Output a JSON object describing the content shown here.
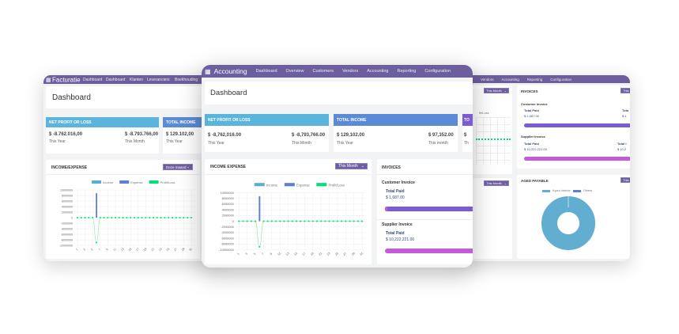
{
  "colors": {
    "header": "#6d5e9e",
    "net_profit": "#5ab4dc",
    "total_income": "#5b8bd6",
    "third_card": "#7b5bd6",
    "income": "#5aaed0",
    "expense": "#5b7fd6",
    "profit_loss": "#00e07a",
    "invoice_bar_customer": "#7a5cd8",
    "invoice_bar_supplier": "#c45ad8",
    "donut": "#62aed0"
  },
  "left": {
    "app_title": "Facturatie",
    "nav": [
      "Dashboard",
      "Dashboard",
      "Klanten",
      "Leveranciers",
      "Boekhouding"
    ],
    "page_title": "Dashboard",
    "net_profit": {
      "title": "NET PROFIT OR LOSS",
      "year_value": "$ -8.762.016,00",
      "year_label": "This Year",
      "month_value": "$ -8.793.766,00",
      "month_label": "This Month"
    },
    "total_income": {
      "title": "TOTAL INCOME",
      "year_value": "$ 129.102,00",
      "year_label": "This Year"
    },
    "income_expense": {
      "title": "INCOME/EXPENSE",
      "period": "Deze maand"
    }
  },
  "center": {
    "app_title": "Accounting",
    "nav": [
      "Dashboard",
      "Overview",
      "Customers",
      "Vendors",
      "Accounting",
      "Reporting",
      "Configuration"
    ],
    "page_title": "Dashboard",
    "net_profit": {
      "title": "NET PROFIT OR LOSS",
      "year_value": "$ -8,762,016.00",
      "year_label": "This Year",
      "month_value": "$ -8,793,766.00",
      "month_label": "This Month"
    },
    "total_income": {
      "title": "TOTAL INCOME",
      "year_value": "$ 129,102.00",
      "year_label": "This Year",
      "month_value": "$ 97,352.00",
      "month_label": "This month"
    },
    "third_card": {
      "title": "TO",
      "value": "$",
      "label": "Th"
    },
    "income_expense": {
      "title": "INCOME EXPENSE",
      "period": "This Month"
    },
    "invoices": {
      "title": "INVOICES",
      "customer_title": "Customer Invoice",
      "customer_paid_label": "Total Paid",
      "customer_paid_value": "$ 1,687.00",
      "supplier_title": "Supplier Invoice",
      "supplier_paid_label": "Total Paid",
      "supplier_paid_value": "$ 10,222,221.00"
    }
  },
  "right": {
    "nav": [
      "Vendors",
      "Accounting",
      "Reporting",
      "Configuration"
    ],
    "period_1": "This Month",
    "period_2": "This Month",
    "legend_fragment": "fit/Loss",
    "invoices": {
      "title": "INVOICES",
      "period": "This",
      "customer_title": "Customer Invoice",
      "customer_paid_label": "Total Paid",
      "customer_paid_value": "$ 1,687.00",
      "customer_col2_label": "Tota",
      "customer_col2_value": "$ 1",
      "supplier_title": "Supplier Invoice",
      "supplier_paid_label": "Total Paid",
      "supplier_paid_value": "$ 10,222,221.00",
      "supplier_col2_label": "Total I",
      "supplier_col2_value": "$ 10,2"
    },
    "aged_payable": {
      "title": "AGED PAYABLE",
      "period": "This",
      "legend": [
        "Kyaro Interior",
        "Others"
      ],
      "values": [
        100,
        0
      ]
    }
  },
  "chart_data": {
    "type": "bar",
    "title": "",
    "legend": [
      "Income",
      "Expense",
      "Profit/Loss"
    ],
    "legend_placement": "top",
    "x": [
      1,
      2,
      3,
      4,
      5,
      6,
      7,
      8,
      9,
      10,
      11,
      12,
      13,
      14,
      15,
      16,
      17,
      18,
      19,
      20,
      21,
      22,
      23,
      24,
      25,
      26,
      27,
      28,
      29,
      30,
      31
    ],
    "x_tick_labels": [
      "1",
      "3",
      "5",
      "7",
      "9",
      "11",
      "13",
      "15",
      "17",
      "19",
      "21",
      "23",
      "25",
      "27",
      "29",
      "31"
    ],
    "y_tick_labels": [
      "10000000",
      "8000000",
      "6000000",
      "4000000",
      "2000000",
      "0",
      "-2000000",
      "-4000000",
      "-6000000",
      "-8000000",
      "-10000000"
    ],
    "ylim": [
      -10000000,
      10000000
    ],
    "grid": true,
    "series": [
      {
        "name": "Income",
        "type": "bar",
        "values": [
          0,
          0,
          0,
          0,
          0,
          0,
          0,
          0,
          0,
          0,
          0,
          0,
          0,
          0,
          0,
          0,
          0,
          0,
          0,
          0,
          0,
          0,
          0,
          0,
          0,
          0,
          0,
          0,
          0,
          0,
          0
        ]
      },
      {
        "name": "Expense",
        "type": "bar",
        "values": [
          0,
          0,
          0,
          0,
          0,
          8800000,
          0,
          0,
          0,
          0,
          0,
          0,
          0,
          0,
          0,
          0,
          0,
          0,
          0,
          0,
          0,
          0,
          0,
          0,
          0,
          0,
          0,
          0,
          0,
          0,
          0
        ]
      },
      {
        "name": "Profit/Loss",
        "type": "line",
        "values": [
          0,
          0,
          0,
          0,
          0,
          -9000000,
          0,
          0,
          0,
          0,
          0,
          0,
          0,
          0,
          0,
          0,
          0,
          0,
          0,
          0,
          0,
          0,
          0,
          0,
          0,
          0,
          0,
          0,
          0,
          0,
          0
        ]
      }
    ]
  }
}
